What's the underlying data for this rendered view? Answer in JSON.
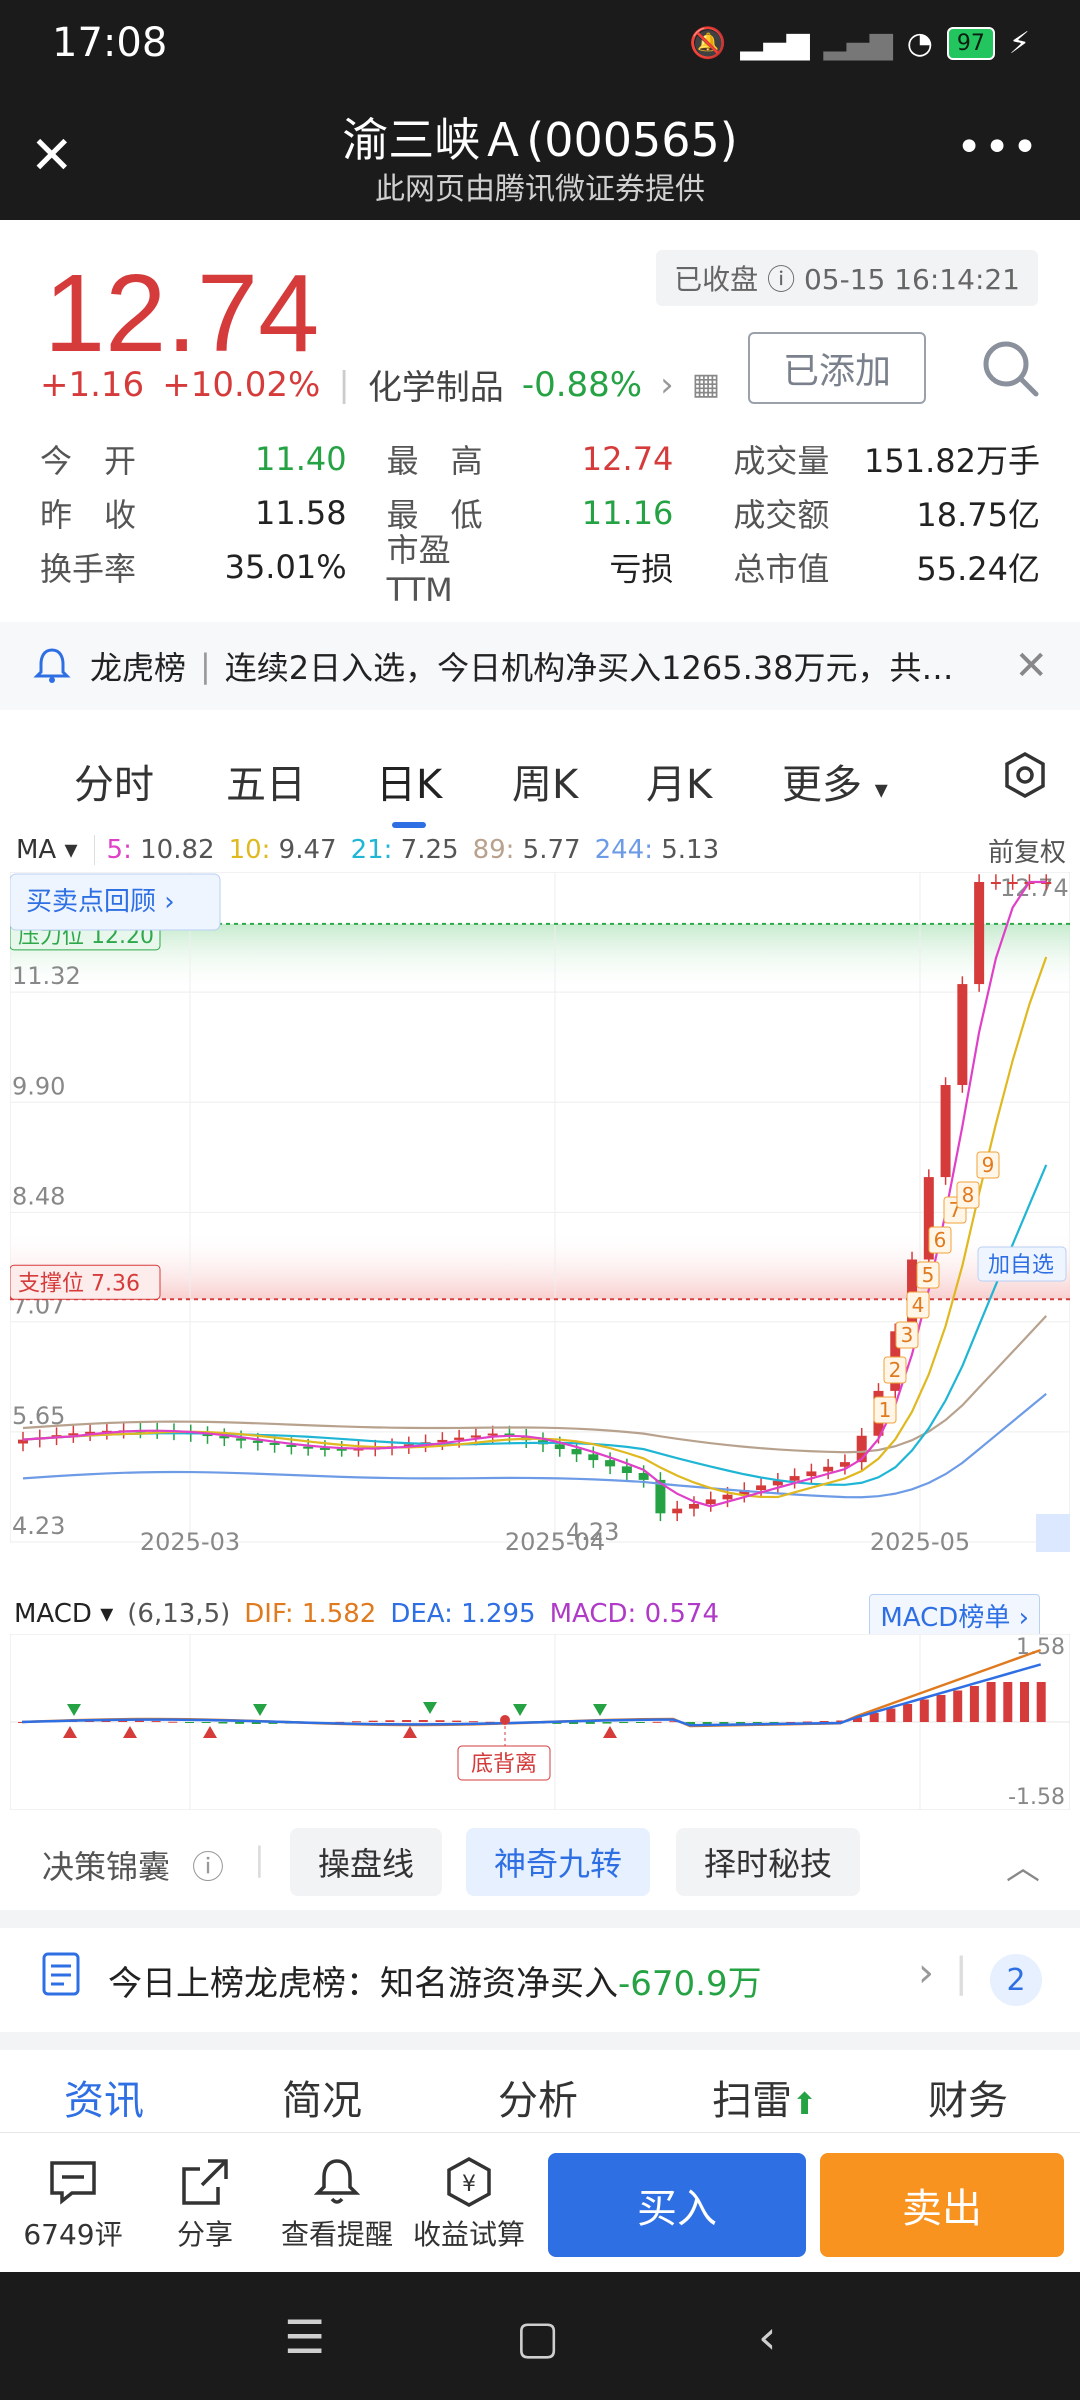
{
  "status_bar": {
    "time": "17:08",
    "battery": "97"
  },
  "header": {
    "title": "渝三峡Ａ(000565)",
    "subtitle": "此网页由腾讯微证券提供"
  },
  "quote": {
    "price": "12.74",
    "closed_label": "已收盘",
    "closed_time": "05-15 16:14:21",
    "change": "+1.16",
    "change_pct": "+10.02%",
    "sector": "化学制品",
    "sector_change": "-0.88%",
    "added_label": "已添加"
  },
  "stats": [
    [
      {
        "label": "今　开",
        "value": "11.40",
        "color": "green"
      },
      {
        "label": "最　高",
        "value": "12.74",
        "color": "red"
      },
      {
        "label": "成交量",
        "value": "151.82万手",
        "color": "black"
      }
    ],
    [
      {
        "label": "昨　收",
        "value": "11.58",
        "color": "black"
      },
      {
        "label": "最　低",
        "value": "11.16",
        "color": "green"
      },
      {
        "label": "成交额",
        "value": "18.75亿",
        "color": "black"
      }
    ],
    [
      {
        "label": "换手率",
        "value": "35.01%",
        "color": "black"
      },
      {
        "label": "市盈TTM",
        "value": "亏损",
        "color": "black"
      },
      {
        "label": "总市值",
        "value": "55.24亿",
        "color": "black"
      }
    ]
  ],
  "banner": {
    "name": "龙虎榜",
    "text": "连续2日入选，今日机构净买入1265.38万元，共…"
  },
  "period_tabs": [
    "分时",
    "五日",
    "日K",
    "周K",
    "月K",
    "更多"
  ],
  "active_period": "日K",
  "ma": {
    "label": "MA",
    "items": [
      {
        "key": "5",
        "value": "10.82",
        "color": "#e040c8"
      },
      {
        "key": "10",
        "value": "9.47",
        "color": "#e0b820"
      },
      {
        "key": "21",
        "value": "7.25",
        "color": "#1fb6d6"
      },
      {
        "key": "89",
        "value": "5.77",
        "color": "#b8a28e"
      },
      {
        "key": "244",
        "value": "5.13",
        "color": "#6d9be6"
      }
    ],
    "adjust": "前复权"
  },
  "chart_labels": {
    "review_button": "买卖点回顾",
    "pressure": "压力位 12.20",
    "support": "支撑位 7.36",
    "add_watch": "加自选",
    "low_mark": "4.23",
    "high_mark": "12.74",
    "divergence": "底背离"
  },
  "chart_data": {
    "type": "candlestick",
    "y_ticks": [
      "12.74",
      "11.32",
      "9.90",
      "8.48",
      "7.07",
      "5.65",
      "4.23"
    ],
    "ylim": [
      4.23,
      12.74
    ],
    "x_ticks": [
      "2025-03",
      "2025-04",
      "2025-05"
    ],
    "ma_series": [
      "MA5",
      "MA10",
      "MA21",
      "MA89",
      "MA244"
    ],
    "macd": {
      "params": "(6,13,5)",
      "dif": "1.582",
      "dea": "1.295",
      "macd": "0.574",
      "y_ticks": [
        "1.58",
        "-1.58"
      ]
    }
  },
  "macd_board": "MACD榜单",
  "decision": {
    "label": "决策锦囊",
    "chips": [
      "操盘线",
      "神奇九转",
      "择时秘技"
    ],
    "active": "神奇九转"
  },
  "today": {
    "text": "今日上榜龙虎榜：知名游资净买入",
    "amount": "-670.9万",
    "count": "2"
  },
  "info_tabs": [
    "资讯",
    "简况",
    "分析",
    "扫雷",
    "财务"
  ],
  "actions": [
    {
      "icon": "comment-icon",
      "label": "6749评"
    },
    {
      "icon": "share-icon",
      "label": "分享"
    },
    {
      "icon": "alarm-icon",
      "label": "查看提醒"
    },
    {
      "icon": "calculator-icon",
      "label": "收益试算"
    }
  ],
  "buy_label": "买入",
  "sell_label": "卖出"
}
